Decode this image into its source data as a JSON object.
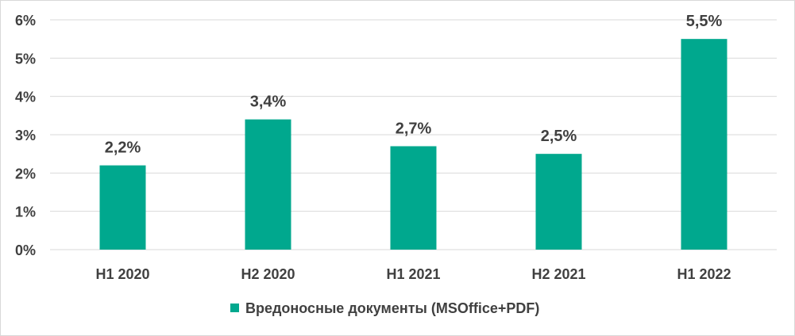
{
  "chart_data": {
    "type": "bar",
    "categories": [
      "H1 2020",
      "H2 2020",
      "H1 2021",
      "H2 2021",
      "H1 2022"
    ],
    "series": [
      {
        "name": "Вредоносные документы (MSOffice+PDF)",
        "values": [
          2.2,
          3.4,
          2.7,
          2.5,
          5.5
        ],
        "data_labels": [
          "2,2%",
          "3,4%",
          "2,7%",
          "2,5%",
          "5,5%"
        ],
        "color": "#00A88E"
      }
    ],
    "y_ticks": [
      "0%",
      "1%",
      "2%",
      "3%",
      "4%",
      "5%",
      "6%"
    ],
    "ylim": [
      0,
      6
    ],
    "grid": true,
    "legend_position": "bottom"
  }
}
